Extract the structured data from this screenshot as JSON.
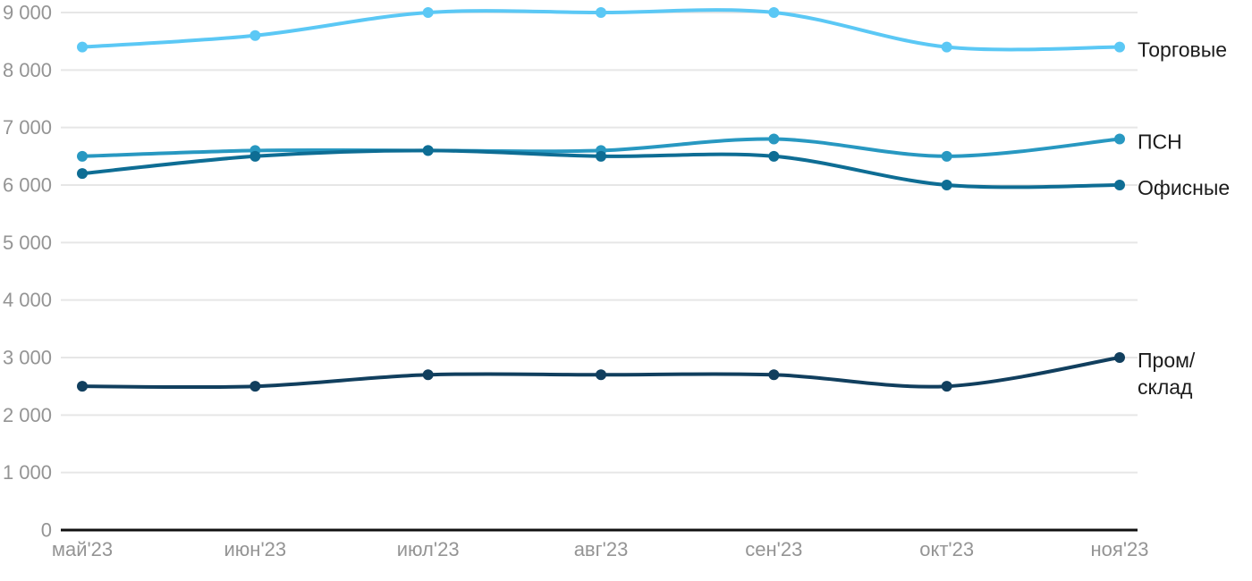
{
  "chart_data": {
    "type": "line",
    "title": "",
    "xlabel": "",
    "ylabel": "",
    "categories": [
      "май'23",
      "июн'23",
      "июл'23",
      "авг'23",
      "сен'23",
      "окт'23",
      "ноя'23"
    ],
    "series": [
      {
        "name": "Торговые",
        "label_lines": [
          "Торговые"
        ],
        "color": "#5BC8F5",
        "values": [
          8400,
          8600,
          9000,
          9000,
          9000,
          8400,
          8400
        ]
      },
      {
        "name": "ПСН",
        "label_lines": [
          "ПСН"
        ],
        "color": "#2898C1",
        "values": [
          6500,
          6600,
          6600,
          6600,
          6800,
          6500,
          6800
        ]
      },
      {
        "name": "Офисные",
        "label_lines": [
          "Офисные"
        ],
        "color": "#0E6D94",
        "values": [
          6200,
          6500,
          6600,
          6500,
          6500,
          6000,
          6000
        ]
      },
      {
        "name": "Пром/склад",
        "label_lines": [
          "Пром/",
          "склад"
        ],
        "color": "#113F5E",
        "values": [
          2500,
          2500,
          2700,
          2700,
          2700,
          2500,
          3000
        ]
      }
    ],
    "y_axis": {
      "min": 0,
      "max": 9000,
      "tick_step": 1000,
      "tick_labels": [
        "0",
        "1 000",
        "2 000",
        "3 000",
        "4 000",
        "5 000",
        "6 000",
        "7 000",
        "8 000",
        "9 000"
      ]
    },
    "ylim": [
      0,
      9000
    ],
    "grid": true,
    "legend_position": "right-of-line-ends"
  },
  "colors": {
    "background": "#FFFFFF",
    "grid_line": "#E6E6E6",
    "axis_line": "#111111",
    "tick_text": "#949494",
    "legend_text": "#1C1C1C"
  }
}
